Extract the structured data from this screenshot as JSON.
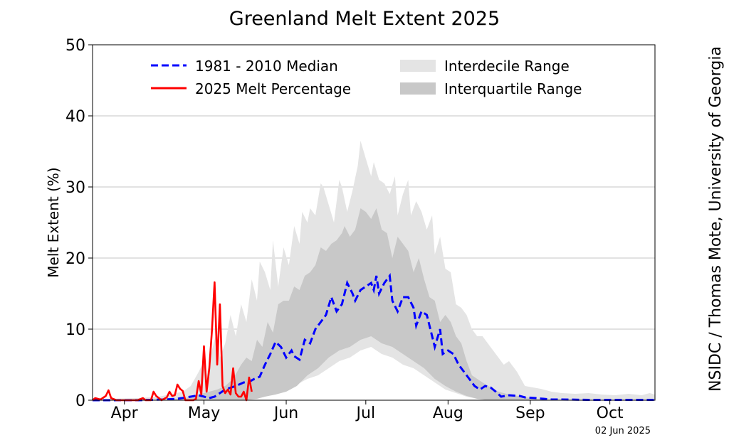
{
  "chart_data": {
    "type": "line",
    "title": "Greenland Melt Extent 2025",
    "ylabel": "Melt Extent (%)",
    "xlabel": "",
    "ylim": [
      0,
      50
    ],
    "xlim": [
      93,
      305
    ],
    "yticks": [
      0,
      10,
      20,
      30,
      40,
      50
    ],
    "xticks": [
      {
        "label": "Apr",
        "day": 105
      },
      {
        "label": "May",
        "day": 135
      },
      {
        "label": "Jun",
        "day": 166
      },
      {
        "label": "Jul",
        "day": 196
      },
      {
        "label": "Aug",
        "day": 227
      },
      {
        "label": "Sep",
        "day": 258
      },
      {
        "label": "Oct",
        "day": 288
      }
    ],
    "grid": "horizontal",
    "legend_position": "top",
    "credit": "NSIDC / Thomas Mote, University of Georgia",
    "date_label": "02 Jun 2025",
    "legend": [
      {
        "label": "1981 - 2010 Median",
        "kind": "dashed-line",
        "color": "#0000ff"
      },
      {
        "label": "2025 Melt Percentage",
        "kind": "line",
        "color": "#ff0000"
      },
      {
        "label": "Interdecile Range",
        "kind": "fill",
        "color": "#e6e6e6"
      },
      {
        "label": "Interquartile Range",
        "kind": "fill",
        "color": "#c8c8c8"
      }
    ],
    "series": [
      {
        "name": "1981 - 2010 Median",
        "color": "#0000ff",
        "points": [
          [
            93,
            0
          ],
          [
            110,
            0
          ],
          [
            120,
            0.1
          ],
          [
            125,
            0.2
          ],
          [
            130,
            0.5
          ],
          [
            133,
            0.7
          ],
          [
            137,
            0.3
          ],
          [
            139,
            0.5
          ],
          [
            141,
            1.0
          ],
          [
            143,
            1.5
          ],
          [
            147,
            2.0
          ],
          [
            150,
            2.5
          ],
          [
            152,
            2.6
          ],
          [
            154,
            3.0
          ],
          [
            156,
            3.3
          ],
          [
            158,
            5.0
          ],
          [
            160,
            6.5
          ],
          [
            162,
            8.2
          ],
          [
            164,
            7.5
          ],
          [
            166,
            6.0
          ],
          [
            168,
            7.0
          ],
          [
            169,
            6.2
          ],
          [
            171,
            5.7
          ],
          [
            173,
            8.5
          ],
          [
            175,
            8.0
          ],
          [
            177,
            10.0
          ],
          [
            179,
            11.0
          ],
          [
            181,
            12.0
          ],
          [
            183,
            14.5
          ],
          [
            185,
            12.5
          ],
          [
            187,
            13.5
          ],
          [
            189,
            16.5
          ],
          [
            191,
            15.0
          ],
          [
            192,
            14.0
          ],
          [
            194,
            15.5
          ],
          [
            196,
            16.0
          ],
          [
            198,
            16.5
          ],
          [
            199,
            15.5
          ],
          [
            200,
            17.5
          ],
          [
            201,
            15.0
          ],
          [
            203,
            16.5
          ],
          [
            205,
            17.5
          ],
          [
            206,
            14.0
          ],
          [
            208,
            12.5
          ],
          [
            210,
            14.5
          ],
          [
            212,
            14.5
          ],
          [
            214,
            13.0
          ],
          [
            215,
            10.5
          ],
          [
            217,
            12.5
          ],
          [
            219,
            12.0
          ],
          [
            221,
            9.0
          ],
          [
            222,
            7.5
          ],
          [
            224,
            10.0
          ],
          [
            225,
            6.5
          ],
          [
            227,
            7.0
          ],
          [
            229,
            6.5
          ],
          [
            231,
            5.0
          ],
          [
            233,
            4.0
          ],
          [
            235,
            3.0
          ],
          [
            237,
            2.0
          ],
          [
            239,
            1.5
          ],
          [
            241,
            2.0
          ],
          [
            243,
            1.8
          ],
          [
            245,
            1.2
          ],
          [
            247,
            0.5
          ],
          [
            250,
            0.7
          ],
          [
            254,
            0.6
          ],
          [
            256,
            0.4
          ],
          [
            260,
            0.3
          ],
          [
            263,
            0.2
          ],
          [
            266,
            0.1
          ],
          [
            270,
            0.1
          ],
          [
            280,
            0.05
          ],
          [
            290,
            0.05
          ],
          [
            305,
            0.05
          ]
        ]
      },
      {
        "name": "2025 Melt Percentage",
        "color": "#ff0000",
        "points": [
          [
            93,
            0
          ],
          [
            94,
            0.3
          ],
          [
            96,
            0.1
          ],
          [
            98,
            0.6
          ],
          [
            99,
            1.4
          ],
          [
            100,
            0.3
          ],
          [
            102,
            0
          ],
          [
            104,
            0
          ],
          [
            106,
            0
          ],
          [
            108,
            0
          ],
          [
            110,
            0
          ],
          [
            112,
            0.3
          ],
          [
            113,
            0
          ],
          [
            115,
            0
          ],
          [
            116,
            1.2
          ],
          [
            117,
            0.6
          ],
          [
            118,
            0.3
          ],
          [
            119,
            0
          ],
          [
            121,
            0.4
          ],
          [
            122,
            1.2
          ],
          [
            123,
            0.6
          ],
          [
            124,
            0.7
          ],
          [
            125,
            2.2
          ],
          [
            126,
            1.6
          ],
          [
            127,
            1.3
          ],
          [
            128,
            0
          ],
          [
            129,
            0
          ],
          [
            130,
            0
          ],
          [
            131,
            0
          ],
          [
            132,
            0.2
          ],
          [
            133,
            2.7
          ],
          [
            134,
            0.8
          ],
          [
            135,
            7.6
          ],
          [
            136,
            1.2
          ],
          [
            137,
            4.5
          ],
          [
            138,
            9.8
          ],
          [
            139,
            16.6
          ],
          [
            140,
            5.0
          ],
          [
            141,
            13.5
          ],
          [
            142,
            2.0
          ],
          [
            143,
            1.0
          ],
          [
            144,
            1.5
          ],
          [
            145,
            0.8
          ],
          [
            146,
            4.5
          ],
          [
            147,
            1.0
          ],
          [
            148,
            0.5
          ],
          [
            149,
            0.5
          ],
          [
            150,
            1.2
          ],
          [
            151,
            0
          ],
          [
            152,
            3.2
          ],
          [
            153,
            1.2
          ]
        ]
      }
    ],
    "interdecile": {
      "upper": [
        [
          93,
          0.1
        ],
        [
          100,
          0.2
        ],
        [
          110,
          0.3
        ],
        [
          118,
          0.5
        ],
        [
          122,
          0.8
        ],
        [
          127,
          1.2
        ],
        [
          130,
          2.0
        ],
        [
          133,
          4.0
        ],
        [
          135,
          5.5
        ],
        [
          136,
          3.5
        ],
        [
          138,
          7.0
        ],
        [
          140,
          10.0
        ],
        [
          141,
          6.0
        ],
        [
          143,
          8.0
        ],
        [
          145,
          12.0
        ],
        [
          147,
          9.0
        ],
        [
          149,
          13.5
        ],
        [
          151,
          11.0
        ],
        [
          153,
          17.0
        ],
        [
          155,
          14.0
        ],
        [
          156,
          19.5
        ],
        [
          158,
          18.0
        ],
        [
          160,
          15.5
        ],
        [
          161,
          22.5
        ],
        [
          163,
          16.0
        ],
        [
          165,
          21.5
        ],
        [
          167,
          19.0
        ],
        [
          169,
          24.5
        ],
        [
          171,
          22.0
        ],
        [
          172,
          26.5
        ],
        [
          174,
          25.0
        ],
        [
          175,
          27.0
        ],
        [
          177,
          26.0
        ],
        [
          179,
          30.5
        ],
        [
          180,
          30.0
        ],
        [
          182,
          27.5
        ],
        [
          184,
          25.0
        ],
        [
          186,
          31.0
        ],
        [
          187,
          30.0
        ],
        [
          189,
          26.5
        ],
        [
          191,
          29.5
        ],
        [
          193,
          33.0
        ],
        [
          194,
          36.5
        ],
        [
          196,
          34.0
        ],
        [
          198,
          31.5
        ],
        [
          199,
          33.5
        ],
        [
          201,
          31.0
        ],
        [
          203,
          30.5
        ],
        [
          205,
          29.0
        ],
        [
          207,
          31.5
        ],
        [
          208,
          26.0
        ],
        [
          210,
          29.0
        ],
        [
          212,
          31.0
        ],
        [
          213,
          26.0
        ],
        [
          215,
          28.0
        ],
        [
          217,
          26.5
        ],
        [
          219,
          24.0
        ],
        [
          221,
          26.0
        ],
        [
          222,
          20.5
        ],
        [
          224,
          23.0
        ],
        [
          226,
          18.5
        ],
        [
          228,
          18.0
        ],
        [
          230,
          13.5
        ],
        [
          232,
          13.0
        ],
        [
          234,
          12.0
        ],
        [
          236,
          10.0
        ],
        [
          238,
          9.0
        ],
        [
          240,
          9.0
        ],
        [
          242,
          8.0
        ],
        [
          245,
          6.5
        ],
        [
          248,
          5.0
        ],
        [
          250,
          5.5
        ],
        [
          253,
          4.0
        ],
        [
          256,
          2.0
        ],
        [
          259,
          1.8
        ],
        [
          262,
          1.6
        ],
        [
          266,
          1.2
        ],
        [
          270,
          1.0
        ],
        [
          275,
          0.9
        ],
        [
          280,
          1.0
        ],
        [
          285,
          0.8
        ],
        [
          290,
          0.7
        ],
        [
          295,
          0.9
        ],
        [
          300,
          0.7
        ],
        [
          303,
          1.0
        ],
        [
          305,
          0.8
        ]
      ],
      "lower": [
        [
          93,
          0
        ],
        [
          130,
          0
        ],
        [
          140,
          0
        ],
        [
          150,
          0.2
        ],
        [
          155,
          0.4
        ],
        [
          158,
          0.8
        ],
        [
          162,
          1.2
        ],
        [
          166,
          1.5
        ],
        [
          170,
          2.2
        ],
        [
          174,
          3.0
        ],
        [
          178,
          3.5
        ],
        [
          182,
          4.5
        ],
        [
          186,
          5.5
        ],
        [
          190,
          6.0
        ],
        [
          194,
          7.0
        ],
        [
          198,
          7.5
        ],
        [
          202,
          6.5
        ],
        [
          206,
          6.0
        ],
        [
          210,
          5.0
        ],
        [
          214,
          4.5
        ],
        [
          218,
          3.5
        ],
        [
          222,
          2.5
        ],
        [
          226,
          1.5
        ],
        [
          230,
          1.0
        ],
        [
          234,
          0.5
        ],
        [
          238,
          0.2
        ],
        [
          242,
          0
        ],
        [
          305,
          0
        ]
      ]
    },
    "interquartile": {
      "upper": [
        [
          93,
          0
        ],
        [
          120,
          0
        ],
        [
          128,
          0.3
        ],
        [
          133,
          0.8
        ],
        [
          137,
          1.2
        ],
        [
          140,
          1.5
        ],
        [
          143,
          2.0
        ],
        [
          146,
          3.0
        ],
        [
          149,
          5.0
        ],
        [
          151,
          6.0
        ],
        [
          153,
          5.5
        ],
        [
          155,
          8.5
        ],
        [
          157,
          7.5
        ],
        [
          159,
          11.0
        ],
        [
          161,
          9.5
        ],
        [
          163,
          13.5
        ],
        [
          165,
          14.0
        ],
        [
          167,
          14.0
        ],
        [
          169,
          16.0
        ],
        [
          171,
          15.5
        ],
        [
          173,
          17.5
        ],
        [
          175,
          18.0
        ],
        [
          177,
          19.0
        ],
        [
          179,
          21.5
        ],
        [
          181,
          21.0
        ],
        [
          183,
          22.0
        ],
        [
          185,
          22.5
        ],
        [
          187,
          23.5
        ],
        [
          188,
          24.5
        ],
        [
          190,
          23.0
        ],
        [
          192,
          24.0
        ],
        [
          194,
          27.0
        ],
        [
          196,
          26.5
        ],
        [
          198,
          25.5
        ],
        [
          200,
          27.0
        ],
        [
          202,
          24.0
        ],
        [
          204,
          23.5
        ],
        [
          206,
          20.0
        ],
        [
          208,
          23.0
        ],
        [
          210,
          22.0
        ],
        [
          212,
          21.0
        ],
        [
          214,
          18.0
        ],
        [
          216,
          20.0
        ],
        [
          218,
          17.0
        ],
        [
          220,
          14.5
        ],
        [
          222,
          14.0
        ],
        [
          224,
          11.0
        ],
        [
          226,
          12.0
        ],
        [
          228,
          11.0
        ],
        [
          230,
          9.0
        ],
        [
          232,
          8.0
        ],
        [
          234,
          5.5
        ],
        [
          236,
          3.5
        ],
        [
          238,
          3.0
        ],
        [
          240,
          2.5
        ],
        [
          243,
          1.8
        ],
        [
          246,
          1.2
        ],
        [
          250,
          0.8
        ],
        [
          255,
          0.5
        ],
        [
          260,
          0.2
        ],
        [
          266,
          0
        ],
        [
          305,
          0
        ]
      ],
      "lower": [
        [
          93,
          0
        ],
        [
          150,
          0
        ],
        [
          155,
          0.2
        ],
        [
          158,
          0.5
        ],
        [
          162,
          0.8
        ],
        [
          166,
          1.2
        ],
        [
          170,
          2.0
        ],
        [
          174,
          3.5
        ],
        [
          178,
          4.5
        ],
        [
          182,
          6.0
        ],
        [
          186,
          7.0
        ],
        [
          190,
          7.5
        ],
        [
          194,
          8.5
        ],
        [
          198,
          9.0
        ],
        [
          202,
          8.0
        ],
        [
          206,
          7.5
        ],
        [
          210,
          6.5
        ],
        [
          214,
          5.5
        ],
        [
          218,
          4.5
        ],
        [
          222,
          3.0
        ],
        [
          226,
          2.0
        ],
        [
          230,
          1.2
        ],
        [
          234,
          0.6
        ],
        [
          238,
          0.2
        ],
        [
          242,
          0
        ],
        [
          305,
          0
        ]
      ]
    }
  }
}
